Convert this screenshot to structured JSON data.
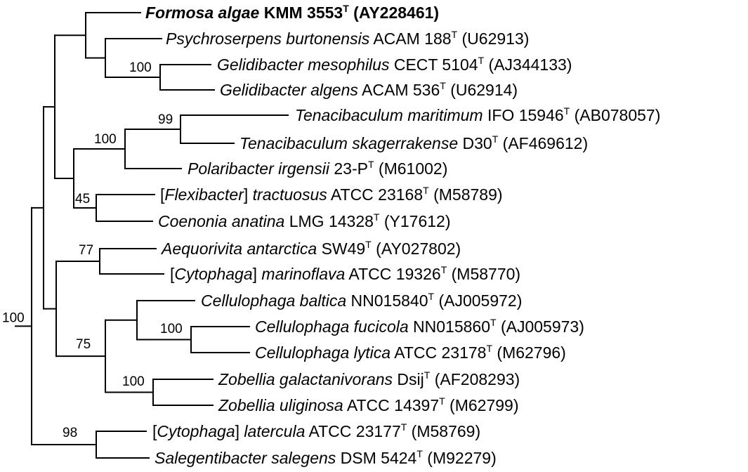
{
  "colors": {
    "line": "#000000",
    "text": "#000000",
    "background": "#ffffff"
  },
  "tree": {
    "taxa": [
      {
        "id": "formosa",
        "parts": [
          {
            "text": "Formosa algae",
            "italic": true
          },
          {
            "text": " KMM 3553"
          },
          {
            "text": "T",
            "sup": true
          },
          {
            "text": " (AY228461)"
          }
        ],
        "bold": true
      },
      {
        "id": "psychroserpens",
        "parts": [
          {
            "text": "Psychroserpens burtonensis",
            "italic": true
          },
          {
            "text": " ACAM 188"
          },
          {
            "text": "T",
            "sup": true
          },
          {
            "text": " (U62913)"
          }
        ]
      },
      {
        "id": "gmesophilus",
        "parts": [
          {
            "text": "Gelidibacter mesophilus",
            "italic": true
          },
          {
            "text": " CECT 5104"
          },
          {
            "text": "T",
            "sup": true
          },
          {
            "text": " (AJ344133)"
          }
        ]
      },
      {
        "id": "galgens",
        "parts": [
          {
            "text": "Gelidibacter algens",
            "italic": true
          },
          {
            "text": " ACAM 536"
          },
          {
            "text": "T",
            "sup": true
          },
          {
            "text": " (U62914)"
          }
        ]
      },
      {
        "id": "tmaritimum",
        "parts": [
          {
            "text": "Tenacibaculum maritimum",
            "italic": true
          },
          {
            "text": " IFO 15946"
          },
          {
            "text": "T",
            "sup": true
          },
          {
            "text": " (AB078057)"
          }
        ]
      },
      {
        "id": "tskagerrakense",
        "parts": [
          {
            "text": "Tenacibaculum skagerrakense",
            "italic": true
          },
          {
            "text": " D30"
          },
          {
            "text": "T",
            "sup": true
          },
          {
            "text": " (AF469612)"
          }
        ]
      },
      {
        "id": "polaribacter",
        "parts": [
          {
            "text": "Polaribacter irgensii",
            "italic": true
          },
          {
            "text": " 23-P"
          },
          {
            "text": "T",
            "sup": true
          },
          {
            "text": " (M61002)"
          }
        ]
      },
      {
        "id": "flexibacter",
        "parts": [
          {
            "text": "["
          },
          {
            "text": "Flexibacter",
            "italic": true
          },
          {
            "text": "] "
          },
          {
            "text": "tractuosus",
            "italic": true
          },
          {
            "text": " ATCC 23168"
          },
          {
            "text": "T",
            "sup": true
          },
          {
            "text": " (M58789)"
          }
        ]
      },
      {
        "id": "coenonia",
        "parts": [
          {
            "text": "Coenonia anatina",
            "italic": true
          },
          {
            "text": " LMG 14328"
          },
          {
            "text": "T",
            "sup": true
          },
          {
            "text": " (Y17612)"
          }
        ]
      },
      {
        "id": "aequorivita",
        "parts": [
          {
            "text": "Aequorivita antarctica",
            "italic": true
          },
          {
            "text": " SW49"
          },
          {
            "text": "T",
            "sup": true
          },
          {
            "text": " (AY027802)"
          }
        ]
      },
      {
        "id": "cmarinoflava",
        "parts": [
          {
            "text": "["
          },
          {
            "text": "Cytophaga",
            "italic": true
          },
          {
            "text": "] "
          },
          {
            "text": "marinoflava",
            "italic": true
          },
          {
            "text": " ATCC 19326"
          },
          {
            "text": "T",
            "sup": true
          },
          {
            "text": " (M58770)"
          }
        ]
      },
      {
        "id": "cbaltica",
        "parts": [
          {
            "text": "Cellulophaga baltica",
            "italic": true
          },
          {
            "text": " NN015840"
          },
          {
            "text": "T",
            "sup": true
          },
          {
            "text": " (AJ005972)"
          }
        ]
      },
      {
        "id": "cfucicola",
        "parts": [
          {
            "text": "Cellulophaga fucicola",
            "italic": true
          },
          {
            "text": " NN015860"
          },
          {
            "text": "T",
            "sup": true
          },
          {
            "text": " (AJ005973)"
          }
        ]
      },
      {
        "id": "clytica",
        "parts": [
          {
            "text": "Cellulophaga lytica",
            "italic": true
          },
          {
            "text": " ATCC 23178"
          },
          {
            "text": "T",
            "sup": true
          },
          {
            "text": " (M62796)"
          }
        ]
      },
      {
        "id": "zgalactanivorans",
        "parts": [
          {
            "text": "Zobellia galactanivorans",
            "italic": true
          },
          {
            "text": " Dsij"
          },
          {
            "text": "T",
            "sup": true
          },
          {
            "text": " (AF208293)"
          }
        ]
      },
      {
        "id": "zuliginosa",
        "parts": [
          {
            "text": "Zobellia uliginosa",
            "italic": true
          },
          {
            "text": " ATCC 14397"
          },
          {
            "text": "T",
            "sup": true
          },
          {
            "text": " (M62799)"
          }
        ]
      },
      {
        "id": "clatercula",
        "parts": [
          {
            "text": "["
          },
          {
            "text": "Cytophaga",
            "italic": true
          },
          {
            "text": "] "
          },
          {
            "text": "latercula",
            "italic": true
          },
          {
            "text": " ATCC 23177"
          },
          {
            "text": "T",
            "sup": true
          },
          {
            "text": " (M58769)"
          }
        ]
      },
      {
        "id": "salegentibacter",
        "parts": [
          {
            "text": "Salegentibacter salegens",
            "italic": true
          },
          {
            "text": " DSM 5424"
          },
          {
            "text": "T",
            "sup": true
          },
          {
            "text": " (M92279)"
          }
        ]
      }
    ],
    "bootstrap": [
      {
        "id": "gelidibacter-clade",
        "value": "100"
      },
      {
        "id": "tenacibaculum-clade",
        "value": "99"
      },
      {
        "id": "tenacibaculum-polaribacter-clade",
        "value": "100"
      },
      {
        "id": "flexibacter-coenonia-clade",
        "value": "45"
      },
      {
        "id": "aequorivita-clade",
        "value": "77"
      },
      {
        "id": "cellulophaga-fucicola-lytica-clade",
        "value": "100"
      },
      {
        "id": "cellulophaga-zobellia-clade",
        "value": "75"
      },
      {
        "id": "zobellia-clade",
        "value": "100"
      },
      {
        "id": "root",
        "value": "100"
      },
      {
        "id": "cytophaga-salegentibacter-clade",
        "value": "98"
      }
    ]
  }
}
